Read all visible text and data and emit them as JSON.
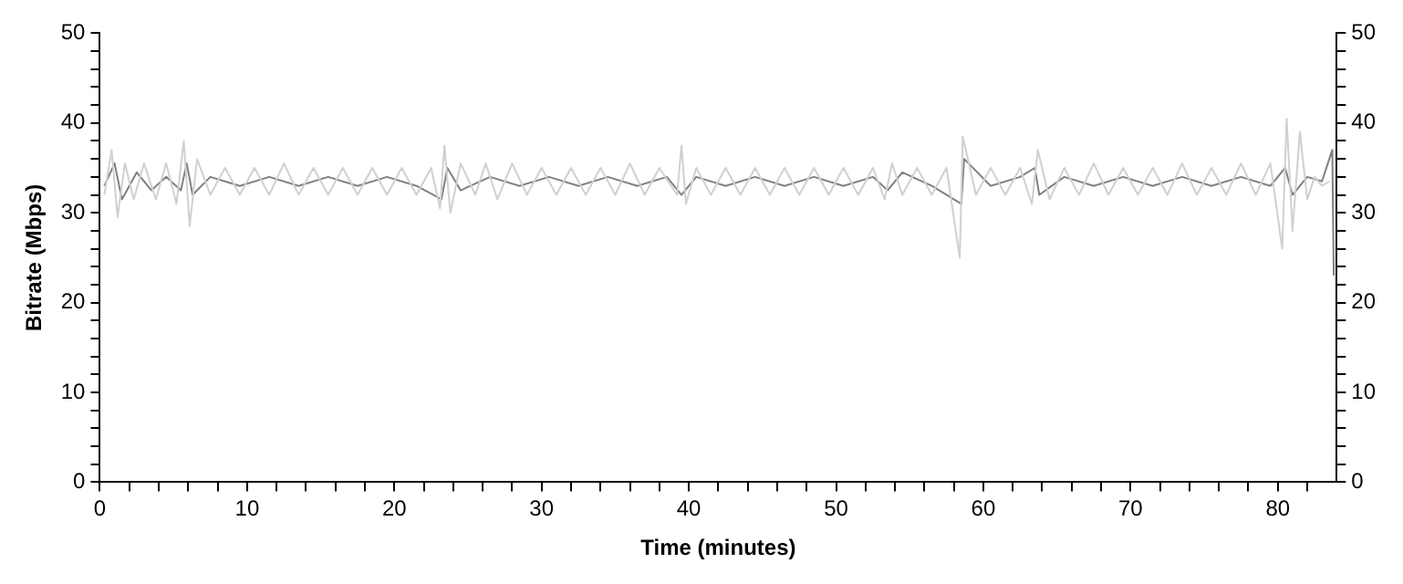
{
  "chart_data": {
    "type": "line",
    "xlabel": "Time (minutes)",
    "ylabel": "Bitrate (Mbps)",
    "xlim": [
      0,
      84
    ],
    "ylim": [
      0,
      50
    ],
    "y2lim": [
      0,
      50
    ],
    "xticks": [
      0,
      {
        "value": 2,
        "label": null
      },
      {
        "value": 4,
        "label": null
      },
      {
        "value": 6,
        "label": null
      },
      {
        "value": 8,
        "label": null
      },
      10,
      {
        "value": 12,
        "label": null
      },
      {
        "value": 14,
        "label": null
      },
      {
        "value": 16,
        "label": null
      },
      {
        "value": 18,
        "label": null
      },
      20,
      {
        "value": 22,
        "label": null
      },
      {
        "value": 24,
        "label": null
      },
      {
        "value": 26,
        "label": null
      },
      {
        "value": 28,
        "label": null
      },
      30,
      {
        "value": 32,
        "label": null
      },
      {
        "value": 34,
        "label": null
      },
      {
        "value": 36,
        "label": null
      },
      {
        "value": 38,
        "label": null
      },
      40,
      {
        "value": 42,
        "label": null
      },
      {
        "value": 44,
        "label": null
      },
      {
        "value": 46,
        "label": null
      },
      {
        "value": 48,
        "label": null
      },
      50,
      {
        "value": 52,
        "label": null
      },
      {
        "value": 54,
        "label": null
      },
      {
        "value": 56,
        "label": null
      },
      {
        "value": 58,
        "label": null
      },
      60,
      {
        "value": 62,
        "label": null
      },
      {
        "value": 64,
        "label": null
      },
      {
        "value": 66,
        "label": null
      },
      {
        "value": 68,
        "label": null
      },
      70,
      {
        "value": 72,
        "label": null
      },
      {
        "value": 74,
        "label": null
      },
      {
        "value": 76,
        "label": null
      },
      {
        "value": 78,
        "label": null
      },
      80,
      {
        "value": 82,
        "label": null
      }
    ],
    "yticks": [
      0,
      {
        "value": 2,
        "label": null
      },
      {
        "value": 4,
        "label": null
      },
      {
        "value": 6,
        "label": null
      },
      {
        "value": 8,
        "label": null
      },
      10,
      {
        "value": 12,
        "label": null
      },
      {
        "value": 14,
        "label": null
      },
      {
        "value": 16,
        "label": null
      },
      {
        "value": 18,
        "label": null
      },
      20,
      {
        "value": 22,
        "label": null
      },
      {
        "value": 24,
        "label": null
      },
      {
        "value": 26,
        "label": null
      },
      {
        "value": 28,
        "label": null
      },
      30,
      {
        "value": 32,
        "label": null
      },
      {
        "value": 34,
        "label": null
      },
      {
        "value": 36,
        "label": null
      },
      {
        "value": 38,
        "label": null
      },
      40,
      {
        "value": 42,
        "label": null
      },
      {
        "value": 44,
        "label": null
      },
      {
        "value": 46,
        "label": null
      },
      {
        "value": 48,
        "label": null
      },
      50
    ],
    "y2ticks": [
      0,
      {
        "value": 2,
        "label": null
      },
      {
        "value": 4,
        "label": null
      },
      {
        "value": 6,
        "label": null
      },
      {
        "value": 8,
        "label": null
      },
      10,
      {
        "value": 12,
        "label": null
      },
      {
        "value": 14,
        "label": null
      },
      {
        "value": 16,
        "label": null
      },
      {
        "value": 18,
        "label": null
      },
      20,
      {
        "value": 22,
        "label": null
      },
      {
        "value": 24,
        "label": null
      },
      {
        "value": 26,
        "label": null
      },
      {
        "value": 28,
        "label": null
      },
      30,
      {
        "value": 32,
        "label": null
      },
      {
        "value": 34,
        "label": null
      },
      {
        "value": 36,
        "label": null
      },
      {
        "value": 38,
        "label": null
      },
      40,
      {
        "value": 42,
        "label": null
      },
      {
        "value": 44,
        "label": null
      },
      {
        "value": 46,
        "label": null
      },
      {
        "value": 48,
        "label": null
      },
      50
    ],
    "grid": false,
    "legend": false,
    "marker": "none",
    "line_style": "solid",
    "series": [
      {
        "color": "#d0d0d0",
        "x": [
          0.3,
          0.8,
          1.2,
          1.7,
          2.3,
          3,
          3.8,
          4.5,
          5.2,
          5.7,
          6.1,
          6.6,
          7.5,
          8.5,
          9.5,
          10.5,
          11.5,
          12.5,
          13.5,
          14.5,
          15.5,
          16.5,
          17.5,
          18.5,
          19.5,
          20.5,
          21.5,
          22.5,
          23.1,
          23.4,
          23.8,
          24.5,
          25.5,
          26.2,
          27,
          28,
          29,
          30,
          31,
          32,
          33,
          34,
          35,
          36,
          37,
          38,
          39.2,
          39.5,
          39.8,
          40.5,
          41.5,
          42.5,
          43.5,
          44.5,
          45.5,
          46.5,
          47.5,
          48.5,
          49.5,
          50.5,
          51.5,
          52.5,
          53.3,
          53.8,
          54.5,
          55.5,
          56.5,
          57.5,
          58.4,
          58.6,
          59.5,
          60.5,
          61.5,
          62.5,
          63.3,
          63.7,
          64.5,
          65.5,
          66.5,
          67.5,
          68.5,
          69.5,
          70.5,
          71.5,
          72.5,
          73.5,
          74.5,
          75.5,
          76.5,
          77.5,
          78.5,
          79.5,
          80.3,
          80.6,
          81,
          81.5,
          82,
          82.5,
          83,
          83.5
        ],
        "values": [
          32,
          37,
          29.5,
          35.5,
          31.5,
          35.5,
          31.5,
          35.5,
          31,
          38,
          28.5,
          36,
          32,
          35,
          32,
          35,
          32,
          35.5,
          32,
          35,
          32,
          35,
          32,
          35,
          32,
          35,
          32,
          35,
          30.5,
          37.5,
          30,
          35.5,
          32,
          35.5,
          31.5,
          35.5,
          32,
          35,
          32,
          35,
          32,
          35,
          32,
          35.5,
          32,
          35,
          32,
          37.5,
          31,
          35,
          32,
          35,
          32,
          35,
          32,
          35,
          32,
          35,
          32,
          35,
          32,
          35,
          31.5,
          35.5,
          32,
          35,
          32,
          35,
          25,
          38.5,
          32,
          35,
          32,
          35,
          31,
          37,
          31.5,
          35,
          32,
          35.5,
          32,
          35,
          32,
          35,
          32,
          35.5,
          32,
          35,
          32,
          35.5,
          32,
          35.5,
          26,
          40.5,
          28,
          39,
          31.5,
          34,
          33,
          33.5
        ]
      },
      {
        "color": "#808080",
        "x": [
          0.3,
          1,
          1.5,
          2.5,
          3.5,
          4.5,
          5.5,
          5.9,
          6.3,
          7.5,
          9.5,
          11.5,
          13.5,
          15.5,
          17.5,
          19.5,
          21.5,
          23.2,
          23.6,
          24.5,
          26.5,
          28.5,
          30.5,
          32.5,
          34.5,
          36.5,
          38.5,
          39.5,
          40.5,
          42.5,
          44.5,
          46.5,
          48.5,
          50.5,
          52.5,
          53.5,
          54.5,
          56.5,
          58.5,
          58.7,
          60.5,
          62.5,
          63.5,
          63.8,
          65.5,
          67.5,
          69.5,
          71.5,
          73.5,
          75.5,
          77.5,
          79.5,
          80.5,
          81,
          82,
          83,
          83.7,
          83.8
        ],
        "values": [
          33,
          35.5,
          31.5,
          34.5,
          32.5,
          34,
          32.5,
          35.5,
          32,
          34,
          33,
          34,
          33,
          34,
          33,
          34,
          33,
          31.5,
          35,
          32.5,
          34,
          33,
          34,
          33,
          34,
          33,
          34,
          32,
          34,
          33,
          34,
          33,
          34,
          33,
          34,
          32.5,
          34.5,
          33,
          31,
          36,
          33,
          34,
          35,
          32,
          34,
          33,
          34,
          33,
          34,
          33,
          34,
          33,
          35,
          32,
          34,
          33.5,
          37,
          23
        ]
      }
    ]
  }
}
